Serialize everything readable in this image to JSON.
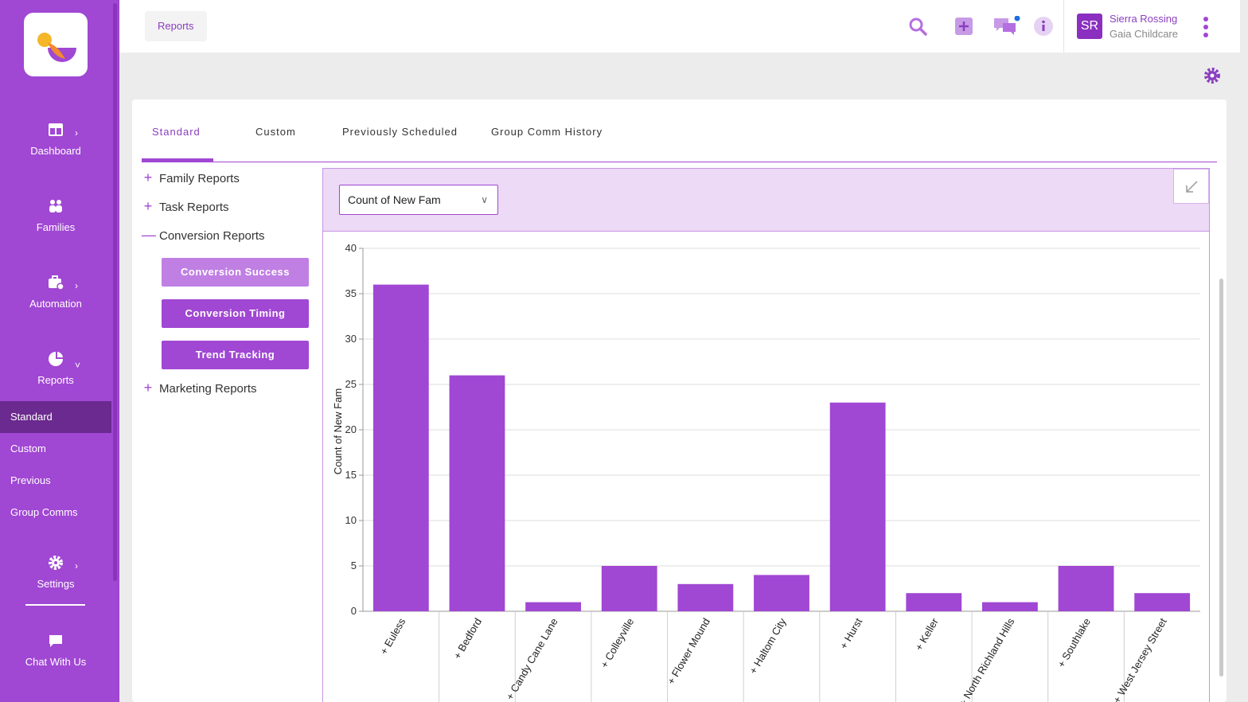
{
  "sidebar": {
    "items": [
      {
        "label": "Dashboard",
        "icon": "dashboard-icon"
      },
      {
        "label": "Families",
        "icon": "families-icon"
      },
      {
        "label": "Automation",
        "icon": "automation-icon"
      },
      {
        "label": "Reports",
        "icon": "reports-icon"
      },
      {
        "label": "Settings",
        "icon": "gear-icon"
      },
      {
        "label": "Chat With Us",
        "icon": "chat-icon"
      }
    ],
    "sub_items": [
      "Standard",
      "Custom",
      "Previous",
      "Group Comms"
    ]
  },
  "header": {
    "breadcrumb": "Reports",
    "user_initials": "SR",
    "user_name": "Sierra Rossing",
    "user_org": "Gaia Childcare"
  },
  "tabs": [
    "Standard",
    "Custom",
    "Previously Scheduled",
    "Group Comm History"
  ],
  "tree": {
    "family_reports": "Family Reports",
    "task_reports": "Task Reports",
    "conversion_reports": "Conversion Reports",
    "marketing_reports": "Marketing Reports",
    "buttons": [
      "Conversion Success",
      "Conversion Timing",
      "Trend Tracking"
    ]
  },
  "chart_select": {
    "value": "Count of New Fam"
  },
  "colors": {
    "accent": "#a047d3",
    "active_sub": "#6b2a8f",
    "bar": "#a047d3"
  },
  "chart_data": {
    "type": "bar",
    "categories": [
      "+ Euless",
      "+ Bedford",
      "+ Candy Cane Lane",
      "+ Colleyville",
      "+ Flower Mound",
      "+ Haltom City",
      "+ Hurst",
      "+ Keller",
      "+ North Richland Hills",
      "+ Southlake",
      "+ West Jersey Street"
    ],
    "values": [
      36,
      26,
      1,
      5,
      3,
      4,
      23,
      2,
      1,
      5,
      2
    ],
    "ylabel": "Count of New Fam",
    "xlabel": "",
    "ylim": [
      0,
      40
    ],
    "yticks": [
      0,
      5,
      10,
      15,
      20,
      25,
      30,
      35,
      40
    ],
    "grid": true
  }
}
